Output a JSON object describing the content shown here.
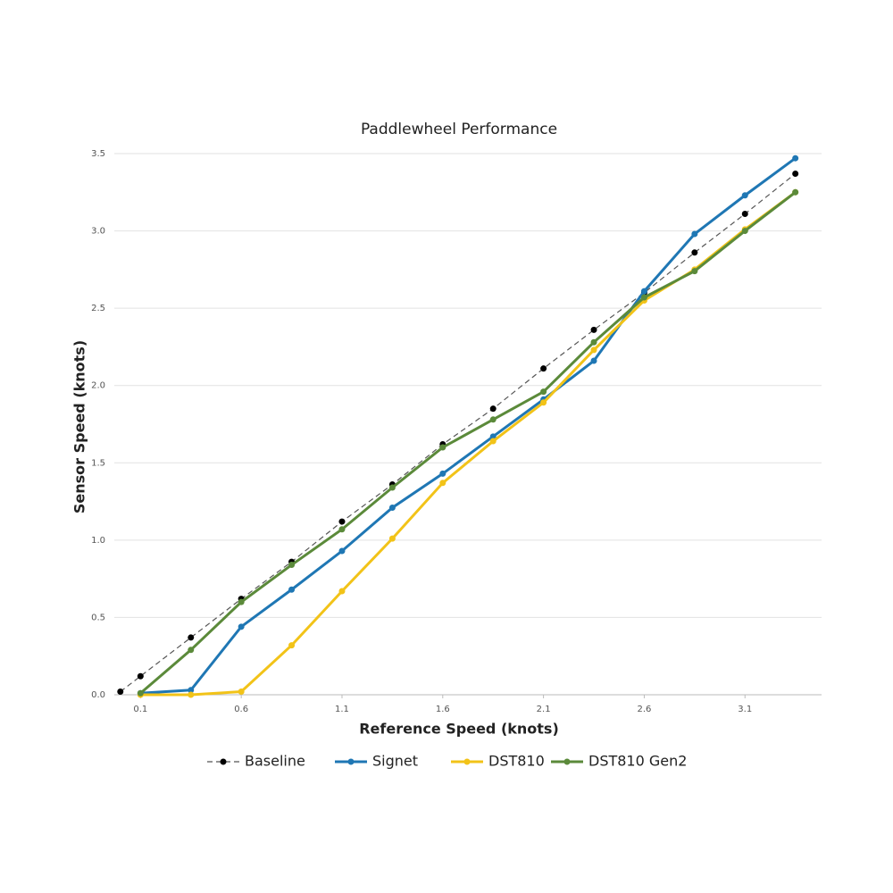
{
  "chart_data": {
    "type": "line",
    "title": "Paddlewheel Performance",
    "x_label": "Reference Speed (knots)",
    "y_label": "Sensor Speed (knots)",
    "xlim": [
      -0.03,
      3.48
    ],
    "xticks": [
      0.1,
      0.6,
      1.1,
      1.6,
      2.1,
      2.6,
      3.1
    ],
    "ylim": [
      0,
      3.5
    ],
    "yticks": [
      {
        "value": 0,
        "label": "0.0"
      },
      0.5,
      {
        "value": 1,
        "label": "1.0"
      },
      1.5,
      {
        "value": 2,
        "label": "2.0"
      },
      2.5,
      {
        "value": 3,
        "label": "3.0"
      },
      3.5
    ],
    "grid": true,
    "legend": "bottom",
    "series": [
      {
        "name": "Baseline",
        "color": "#555555",
        "marker_color": "#000000",
        "dashed": true,
        "x": [
          0,
          0.1,
          0.35,
          0.6,
          0.85,
          1.1,
          1.35,
          1.6,
          1.85,
          2.1,
          2.35,
          2.6,
          2.85,
          3.1,
          3.35
        ],
        "values": [
          0.02,
          0.12,
          0.37,
          0.62,
          0.86,
          1.12,
          1.36,
          1.62,
          1.85,
          2.11,
          2.36,
          2.6,
          2.86,
          3.11,
          3.37
        ]
      },
      {
        "name": "Signet",
        "color": "#1f77b4",
        "x": [
          0.1,
          0.35,
          0.6,
          0.85,
          1.1,
          1.35,
          1.6,
          1.85,
          2.1,
          2.35,
          2.6,
          2.85,
          3.1,
          3.35
        ],
        "values": [
          0.01,
          0.03,
          0.44,
          0.68,
          0.93,
          1.21,
          1.43,
          1.67,
          1.91,
          2.16,
          2.61,
          2.98,
          3.23,
          3.47
        ]
      },
      {
        "name": "DST810",
        "color": "#f2c318",
        "x": [
          0.1,
          0.35,
          0.6,
          0.85,
          1.1,
          1.35,
          1.6,
          1.85,
          2.1,
          2.35,
          2.6,
          2.85,
          3.1,
          3.35
        ],
        "values": [
          0,
          0,
          0.02,
          0.32,
          0.67,
          1.01,
          1.37,
          1.64,
          1.89,
          2.23,
          2.55,
          2.75,
          3.01,
          3.25
        ]
      },
      {
        "name": "DST810 Gen2",
        "color": "#5b8a3a",
        "x": [
          0.1,
          0.35,
          0.6,
          0.85,
          1.1,
          1.35,
          1.6,
          1.85,
          2.1,
          2.35,
          2.6,
          2.85,
          3.1,
          3.35
        ],
        "values": [
          0.01,
          0.29,
          0.6,
          0.84,
          1.07,
          1.34,
          1.6,
          1.78,
          1.96,
          2.28,
          2.57,
          2.74,
          3.0,
          3.25
        ]
      }
    ]
  }
}
